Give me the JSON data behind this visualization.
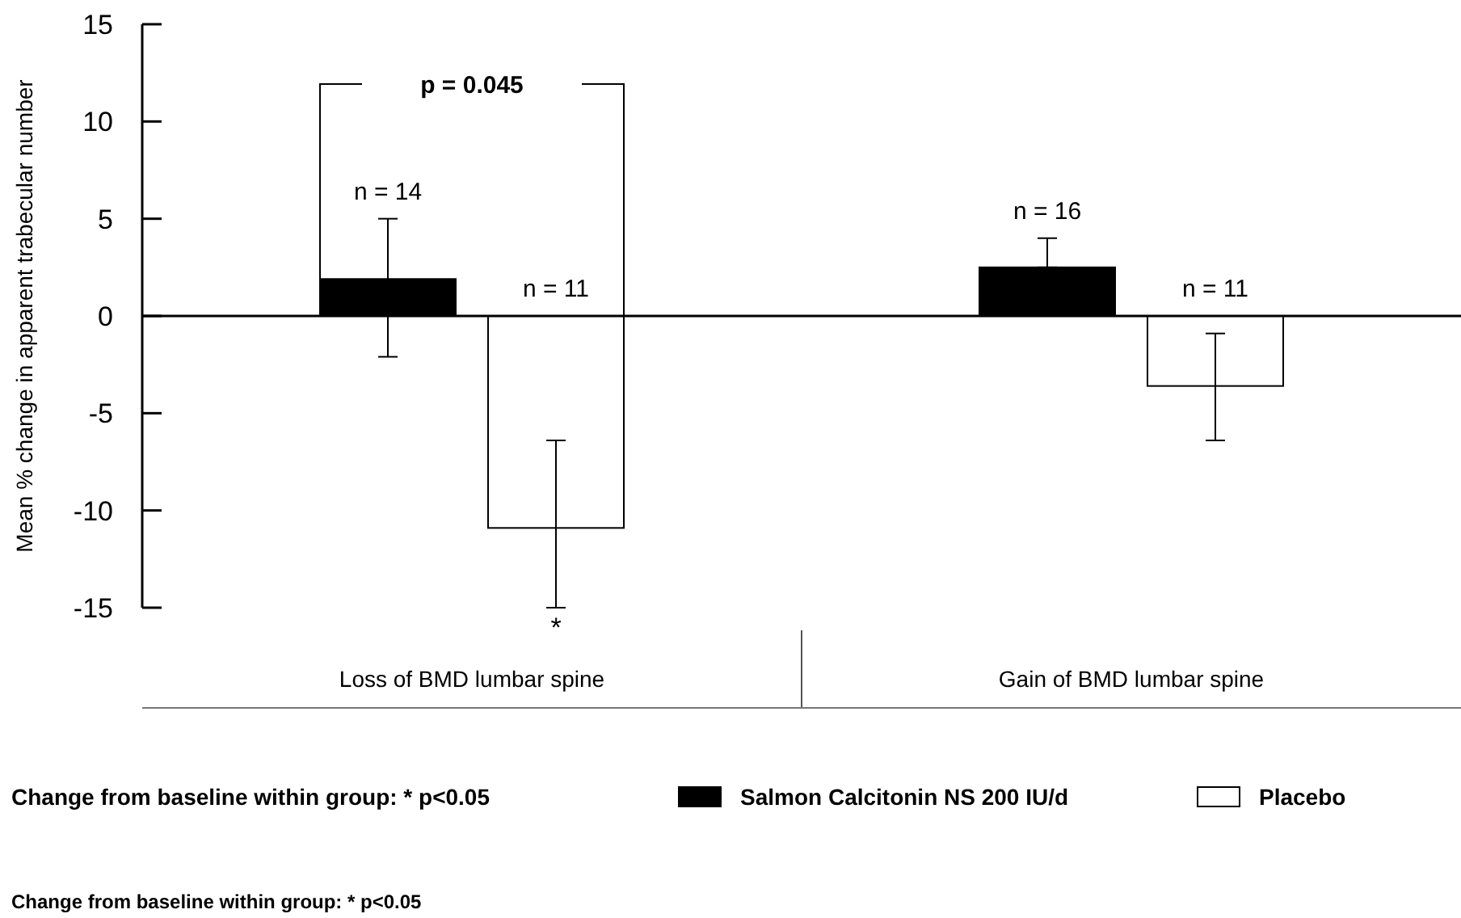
{
  "chart_data": {
    "type": "bar",
    "ylabel": "Mean % change in apparent trabecular number",
    "categories": [
      "Loss of BMD lumbar spine",
      "Gain of BMD lumbar spine"
    ],
    "series": [
      {
        "name": "Salmon Calcitonin NS 200 IU/d",
        "color": "#000000",
        "values": [
          1.9,
          2.5
        ],
        "errors": [
          [
            -2.1,
            5.0
          ],
          [
            2.5,
            4.0
          ]
        ]
      },
      {
        "name": "Placebo",
        "color": "#ffffff",
        "values": [
          -10.9,
          -3.6
        ],
        "errors": [
          [
            -15.0,
            -6.4
          ],
          [
            -6.4,
            -0.9
          ]
        ]
      }
    ],
    "ylim": [
      -15,
      15
    ],
    "yticks": [
      -15,
      -10,
      -5,
      0,
      5,
      10,
      15
    ],
    "legend": "bottom",
    "annotations": [
      "Change from baseline within group: * p<0.05",
      "Change from baseline within group: * p<0.05",
      "p = 0.045",
      "*",
      "n = 14",
      "n = 16",
      "n = 11",
      "n = 11"
    ]
  }
}
